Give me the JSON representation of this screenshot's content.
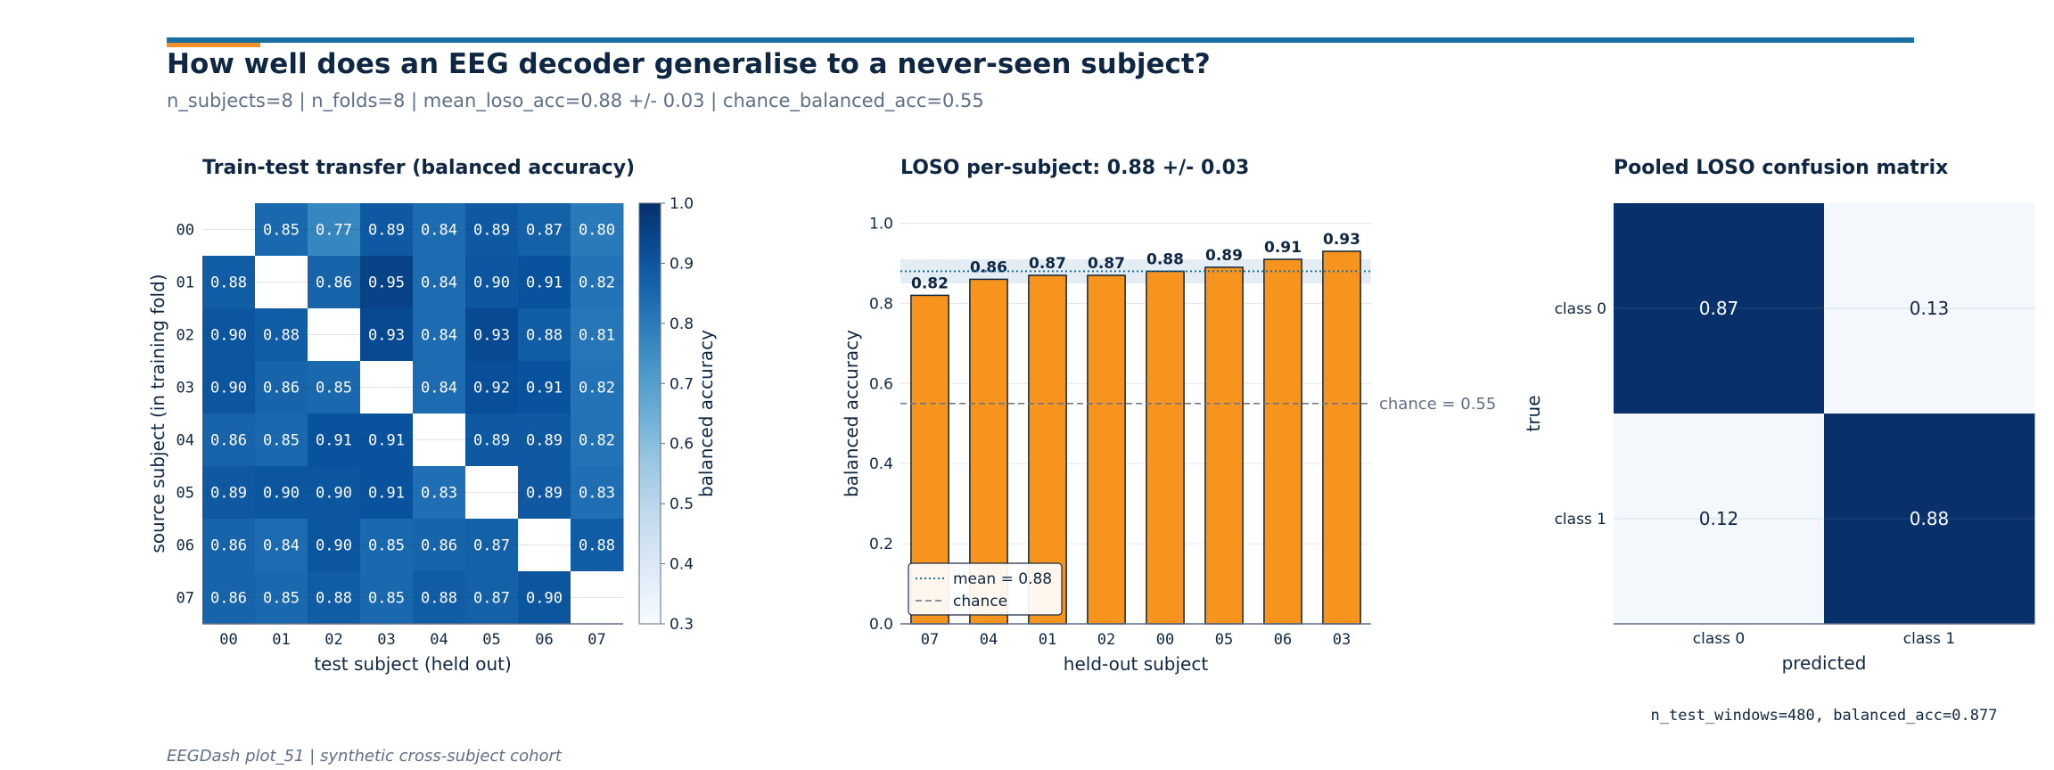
{
  "header": {
    "title": "How well does an EEG decoder generalise to a never-seen subject?",
    "subtitle": "n_subjects=8 | n_folds=8 | mean_loso_acc=0.88 +/- 0.03 | chance_balanced_acc=0.55",
    "footer": "EEGDash plot_51 | synthetic cross-subject cohort"
  },
  "colors": {
    "navy": "#0f2742",
    "accent_blue": "#1a6fa0",
    "accent_orange": "#f0922b",
    "bar_orange": "#f7941d",
    "muted": "#5f6f87"
  },
  "chart_data": [
    {
      "type": "heatmap",
      "title": "Train-test transfer (balanced accuracy)",
      "xlabel": "test subject (held out)",
      "ylabel": "source subject (in training fold)",
      "x": [
        "00",
        "01",
        "02",
        "03",
        "04",
        "05",
        "06",
        "07"
      ],
      "y": [
        "00",
        "01",
        "02",
        "03",
        "04",
        "05",
        "06",
        "07"
      ],
      "values": [
        [
          null,
          0.85,
          0.77,
          0.89,
          0.84,
          0.89,
          0.87,
          0.8
        ],
        [
          0.88,
          null,
          0.86,
          0.95,
          0.84,
          0.9,
          0.91,
          0.82
        ],
        [
          0.9,
          0.88,
          null,
          0.93,
          0.84,
          0.93,
          0.88,
          0.81
        ],
        [
          0.9,
          0.86,
          0.85,
          null,
          0.84,
          0.92,
          0.91,
          0.82
        ],
        [
          0.86,
          0.85,
          0.91,
          0.91,
          null,
          0.89,
          0.89,
          0.82
        ],
        [
          0.89,
          0.9,
          0.9,
          0.91,
          0.83,
          null,
          0.89,
          0.83
        ],
        [
          0.86,
          0.84,
          0.9,
          0.85,
          0.86,
          0.87,
          null,
          0.88
        ],
        [
          0.86,
          0.85,
          0.88,
          0.85,
          0.88,
          0.87,
          0.9,
          null
        ]
      ],
      "value_labels": [
        [
          "",
          "0.85",
          "0.77",
          "0.89",
          "0.84",
          "0.89",
          "0.87",
          "0.80"
        ],
        [
          "0.88",
          "",
          "0.86",
          "0.95",
          "0.84",
          "0.90",
          "0.91",
          "0.82"
        ],
        [
          "0.90",
          "0.88",
          "",
          "0.93",
          "0.84",
          "0.93",
          "0.88",
          "0.81"
        ],
        [
          "0.90",
          "0.86",
          "0.85",
          "",
          "0.84",
          "0.92",
          "0.91",
          "0.82"
        ],
        [
          "0.86",
          "0.85",
          "0.91",
          "0.91",
          "",
          "0.89",
          "0.89",
          "0.82"
        ],
        [
          "0.89",
          "0.90",
          "0.90",
          "0.91",
          "0.83",
          "",
          "0.89",
          "0.83"
        ],
        [
          "0.86",
          "0.84",
          "0.90",
          "0.85",
          "0.86",
          "0.87",
          "",
          "0.88"
        ],
        [
          "0.86",
          "0.85",
          "0.88",
          "0.85",
          "0.88",
          "0.87",
          "0.90",
          ""
        ]
      ],
      "colorbar": {
        "label": "balanced accuracy",
        "range": [
          0.3,
          1.0
        ],
        "ticks": [
          1.0,
          0.9,
          0.8,
          0.7,
          0.6,
          0.5,
          0.4,
          0.3
        ],
        "tick_labels": [
          "1.0",
          "0.9",
          "0.8",
          "0.7",
          "0.6",
          "0.5",
          "0.4",
          "0.3"
        ],
        "colormap": "Blues"
      }
    },
    {
      "type": "bar",
      "title": "LOSO per-subject: 0.88 +/- 0.03",
      "xlabel": "held-out subject",
      "ylabel": "balanced accuracy",
      "categories": [
        "07",
        "04",
        "01",
        "02",
        "00",
        "05",
        "06",
        "03"
      ],
      "values": [
        0.82,
        0.86,
        0.87,
        0.87,
        0.88,
        0.89,
        0.91,
        0.93
      ],
      "value_labels": [
        "0.82",
        "0.86",
        "0.87",
        "0.87",
        "0.88",
        "0.89",
        "0.91",
        "0.93"
      ],
      "ylim": [
        0,
        1.05
      ],
      "yticks": [
        0.0,
        0.2,
        0.4,
        0.6,
        0.8,
        1.0
      ],
      "ytick_labels": [
        "0.0",
        "0.2",
        "0.4",
        "0.6",
        "0.8",
        "1.0"
      ],
      "grid": true,
      "mean": 0.88,
      "std": 0.03,
      "chance": 0.55,
      "chance_annotation": "chance = 0.55",
      "legend": {
        "placement": "lower-left",
        "entries": [
          "mean = 0.88",
          "chance"
        ]
      }
    },
    {
      "type": "heatmap",
      "title": "Pooled LOSO confusion matrix",
      "xlabel": "predicted",
      "ylabel": "true",
      "x": [
        "class 0",
        "class 1"
      ],
      "y": [
        "class 0",
        "class 1"
      ],
      "values": [
        [
          0.87,
          0.13
        ],
        [
          0.12,
          0.88
        ]
      ],
      "value_labels": [
        [
          "0.87",
          "0.13"
        ],
        [
          "0.12",
          "0.88"
        ]
      ],
      "note": "n_test_windows=480, balanced_acc=0.877"
    }
  ]
}
